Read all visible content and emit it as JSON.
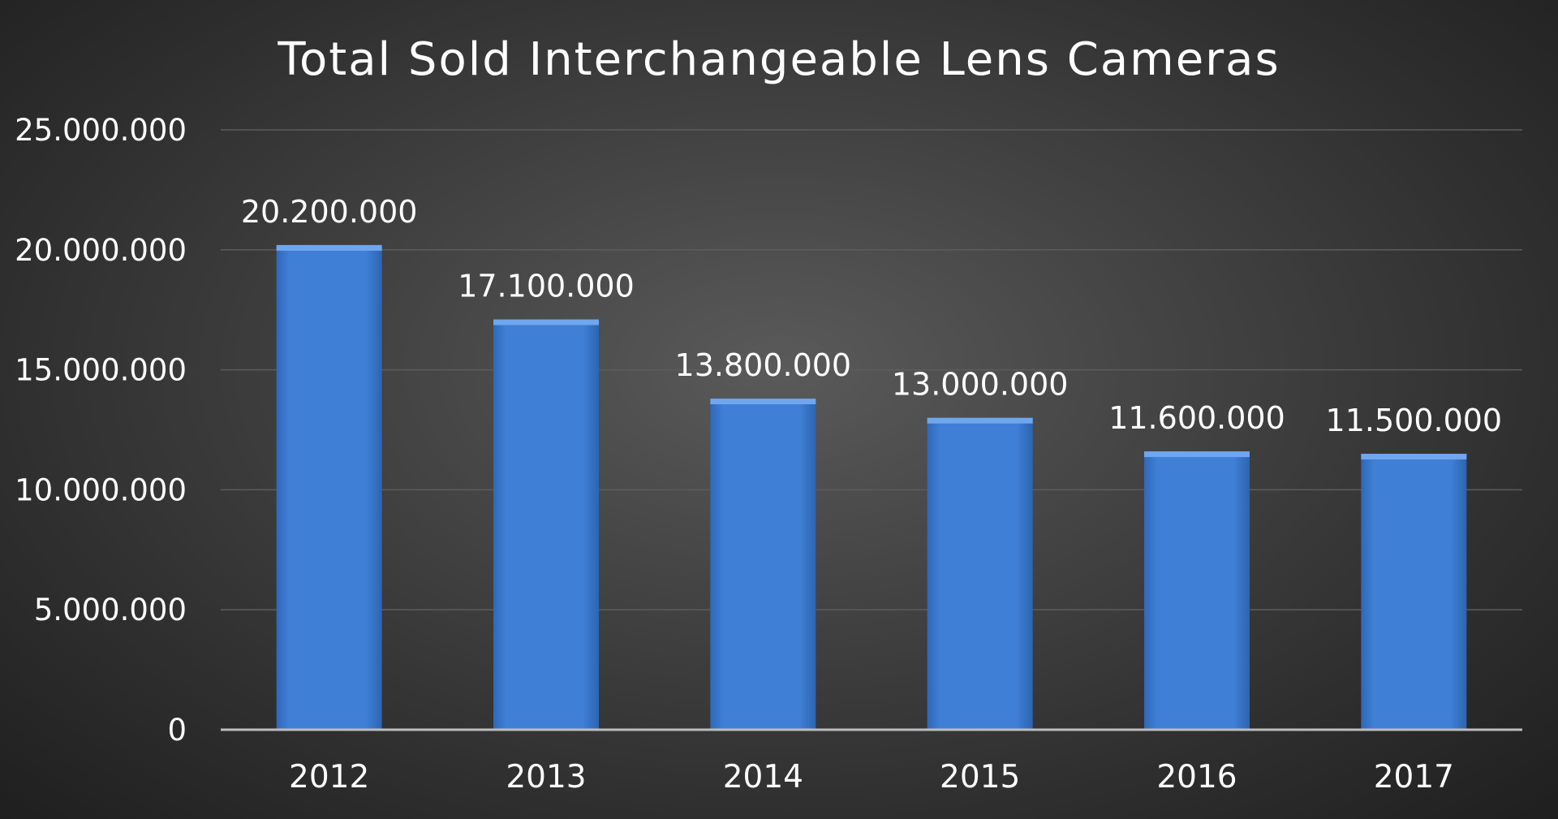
{
  "chart_data": {
    "type": "bar",
    "title": "Total Sold Interchangeable Lens Cameras",
    "categories": [
      "2012",
      "2013",
      "2014",
      "2015",
      "2016",
      "2017"
    ],
    "values": [
      20200000,
      17100000,
      13800000,
      13000000,
      11600000,
      11500000
    ],
    "data_labels": [
      "20.200.000",
      "17.100.000",
      "13.800.000",
      "13.000.000",
      "11.600.000",
      "11.500.000"
    ],
    "yticks": [
      0,
      5000000,
      10000000,
      15000000,
      20000000,
      25000000
    ],
    "ytick_labels": [
      "0",
      "5.000.000",
      "10.000.000",
      "15.000.000",
      "20.000.000",
      "25.000.000"
    ],
    "ylim": [
      0,
      25000000
    ],
    "xlabel": "",
    "ylabel": "",
    "grid": true,
    "legend": "none",
    "colors": {
      "bar": "#3f7fd6",
      "bar_top": "#6fa6ee",
      "text": "#ffffff"
    }
  }
}
